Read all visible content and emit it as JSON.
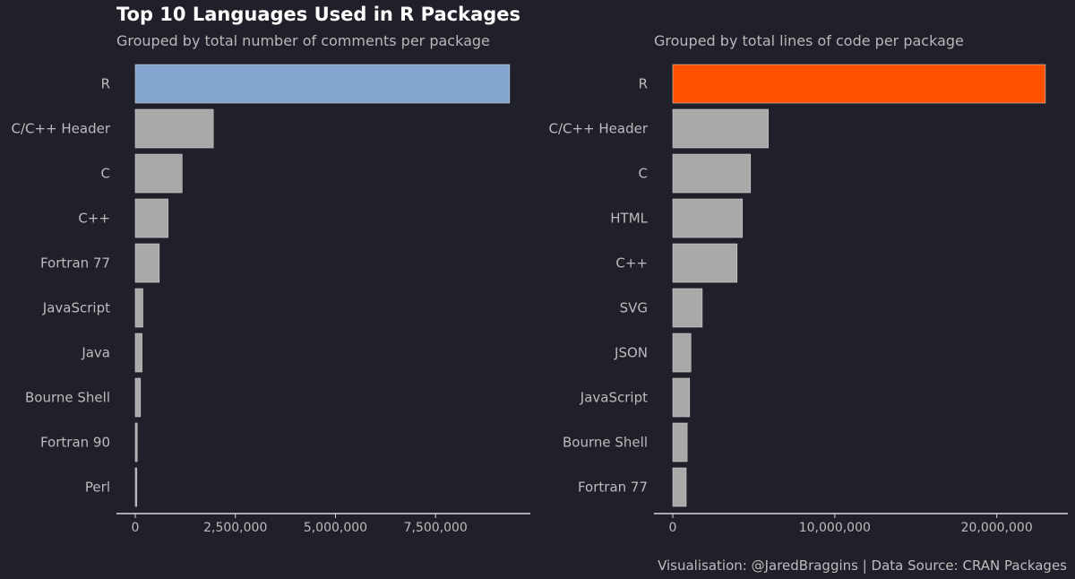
{
  "title": "Top 10 Languages Used in R Packages",
  "caption": "Visualisation: @JaredBraggins | Data Source: CRAN Packages",
  "colors": {
    "background": "#1f2029",
    "default_bar": "#a9a9a9",
    "axis": "#d9d9d9"
  },
  "chart_data": [
    {
      "type": "bar",
      "orientation": "horizontal",
      "subtitle": "Grouped by total number of comments per package",
      "highlight_color": "#82a5d0",
      "categories": [
        "R",
        "C/C++ Header",
        "C",
        "C++",
        "Fortran 77",
        "JavaScript",
        "Java",
        "Bourne Shell",
        "Fortran 90",
        "Perl"
      ],
      "values": [
        9350000,
        1950000,
        1170000,
        820000,
        600000,
        190000,
        170000,
        130000,
        50000,
        40000
      ],
      "xlim": [
        0,
        9800000
      ],
      "ticks": [
        0,
        2500000,
        5000000,
        7500000
      ],
      "tick_labels": [
        "0",
        "2,500,000",
        "5,000,000",
        "7,500,000"
      ],
      "grid": false
    },
    {
      "type": "bar",
      "orientation": "horizontal",
      "subtitle": "Grouped by total lines of code per package",
      "highlight_color": "#ff5000",
      "categories": [
        "R",
        "C/C++ Header",
        "C",
        "HTML",
        "C++",
        "SVG",
        "JSON",
        "JavaScript",
        "Bourne Shell",
        "Fortran 77"
      ],
      "values": [
        23000000,
        5900000,
        4800000,
        4300000,
        3970000,
        1820000,
        1120000,
        1040000,
        890000,
        830000
      ],
      "xlim": [
        0,
        24000000
      ],
      "ticks": [
        0,
        10000000,
        20000000
      ],
      "tick_labels": [
        "0",
        "10,000,000",
        "20,000,000"
      ],
      "grid": false
    }
  ]
}
